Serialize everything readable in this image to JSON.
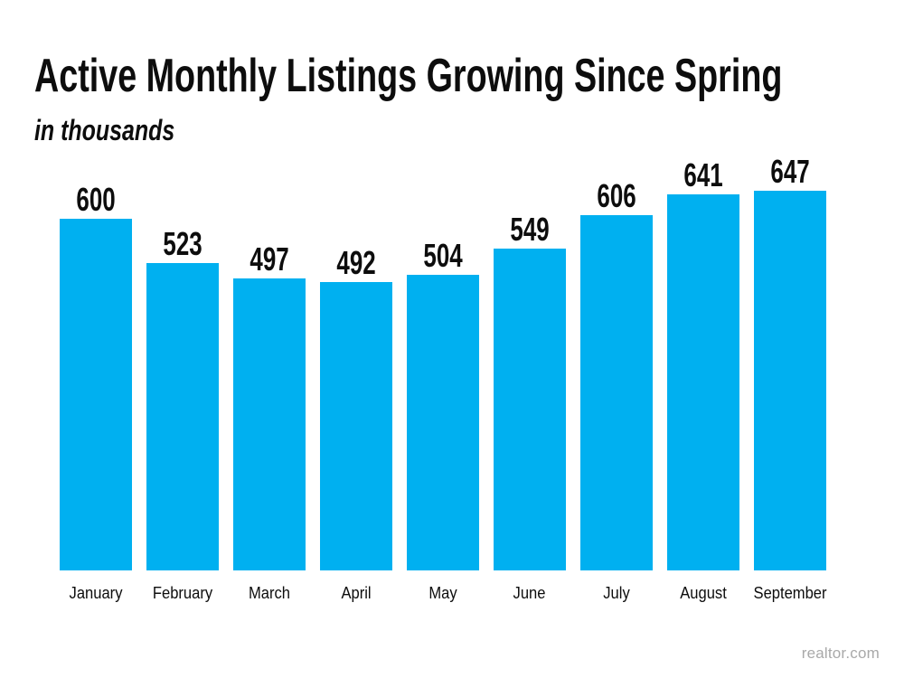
{
  "page": {
    "background": "#ffffff"
  },
  "header": {
    "title": "Active Monthly Listings Growing Since Spring",
    "subtitle": "in thousands"
  },
  "chart_data": {
    "type": "bar",
    "categories": [
      "January",
      "February",
      "March",
      "April",
      "May",
      "June",
      "July",
      "August",
      "September"
    ],
    "values": [
      600,
      523,
      497,
      492,
      504,
      549,
      606,
      641,
      647
    ],
    "title": "Active Monthly Listings Growing Since Spring",
    "subtitle": "in thousands",
    "unit": "thousands",
    "bar_color": "#00B0F0",
    "label_color": "#0d0d0d",
    "data_labels": true,
    "ylim": [
      0,
      647
    ],
    "grid": false,
    "legend": false,
    "axis_lines": false
  },
  "footer": {
    "attribution": "realtor.com"
  }
}
